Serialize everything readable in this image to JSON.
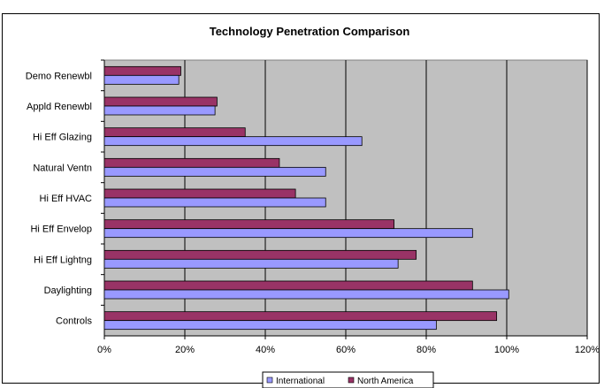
{
  "chart_data": {
    "type": "bar",
    "orientation": "horizontal",
    "title": "Technology Penetration Comparison",
    "categories": [
      "Demo Renewbl",
      "Appld Renewbl",
      "Hi Eff Glazing",
      "Natural Ventn",
      "Hi Eff HVAC",
      "Hi Eff Envelop",
      "Hi Eff Lightng",
      "Daylighting",
      "Controls"
    ],
    "series": [
      {
        "name": "North America",
        "color": "#993366",
        "values": [
          19,
          28,
          35,
          43.5,
          47.5,
          72,
          77.5,
          91.5,
          97.5
        ]
      },
      {
        "name": "International",
        "color": "#9999ff",
        "values": [
          18.5,
          27.5,
          64,
          55,
          55,
          91.5,
          73,
          100.5,
          82.5
        ]
      }
    ],
    "xlim": [
      0,
      120
    ],
    "x_ticks": [
      "0%",
      "20%",
      "40%",
      "60%",
      "80%",
      "100%",
      "120%"
    ],
    "grid": true,
    "plot_background": "#c0c0c0",
    "legend": {
      "position": "bottom",
      "entries": [
        {
          "label": "International",
          "color": "#9999ff"
        },
        {
          "label": "North America",
          "color": "#993366"
        }
      ]
    }
  }
}
